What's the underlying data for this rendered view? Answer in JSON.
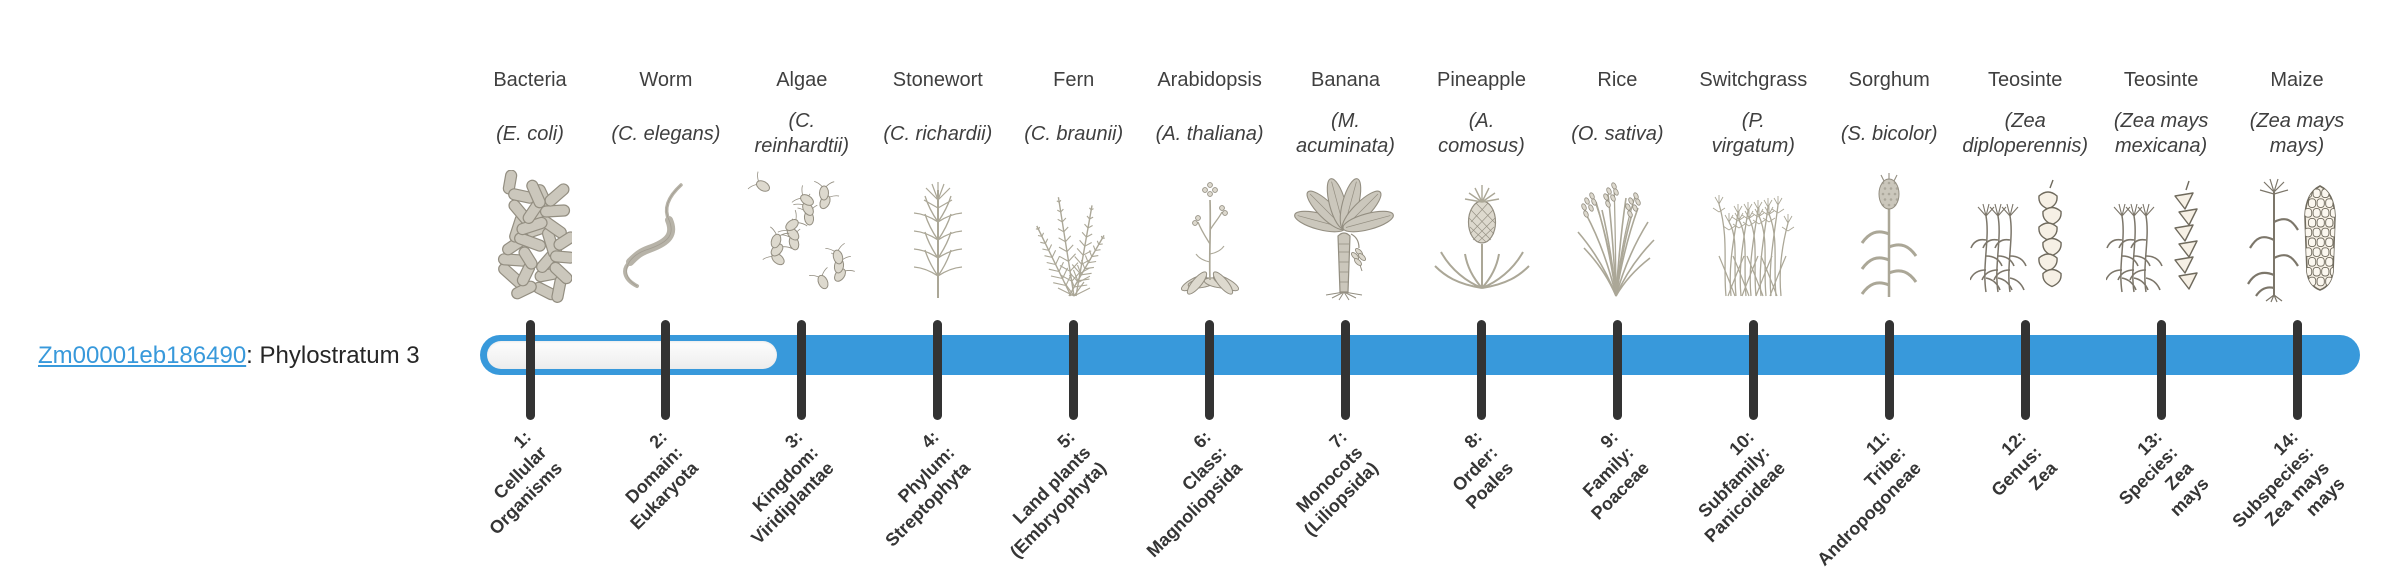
{
  "gene": {
    "id": "Zm00001eb186490",
    "separator": ": ",
    "phylostratum": "Phylostratum 3"
  },
  "colors": {
    "bar_blue": "#3899db",
    "tick_dark": "#333333",
    "link_blue": "#3899db",
    "text_dark": "#3f3f3f"
  },
  "timeline": {
    "total_strata": 14,
    "gene_stratum": 3,
    "unfilled_strata": [
      1,
      2
    ]
  },
  "strata": [
    {
      "index": 1,
      "organism": "Bacteria",
      "species": "(E. coli)",
      "icon": "bacteria-icon",
      "label": "1:\nCellular\nOrganisms"
    },
    {
      "index": 2,
      "organism": "Worm",
      "species": "(C. elegans)",
      "icon": "worm-icon",
      "label": "2:\nDomain:\nEukaryota"
    },
    {
      "index": 3,
      "organism": "Algae",
      "species": "(C.\nreinhardtii)",
      "icon": "algae-icon",
      "label": "3:\nKingdom:\nViridiplantae"
    },
    {
      "index": 4,
      "organism": "Stonewort",
      "species": "(C. richardii)",
      "icon": "stonewort-icon",
      "label": "4:\nPhylum:\nStreptophyta"
    },
    {
      "index": 5,
      "organism": "Fern",
      "species": "(C. braunii)",
      "icon": "fern-icon",
      "label": "5:\nLand plants\n(Embryophyta)"
    },
    {
      "index": 6,
      "organism": "Arabidopsis",
      "species": "(A. thaliana)",
      "icon": "arabidopsis-icon",
      "label": "6:\nClass:\nMagnoliopsida"
    },
    {
      "index": 7,
      "organism": "Banana",
      "species": "(M.\nacuminata)",
      "icon": "banana-icon",
      "label": "7:\nMonocots\n(Liliopsida)"
    },
    {
      "index": 8,
      "organism": "Pineapple",
      "species": "(A.\ncomosus)",
      "icon": "pineapple-icon",
      "label": "8:\nOrder:\nPoales"
    },
    {
      "index": 9,
      "organism": "Rice",
      "species": "(O. sativa)",
      "icon": "rice-icon",
      "label": "9:\nFamily:\nPoaceae"
    },
    {
      "index": 10,
      "organism": "Switchgrass",
      "species": "(P.\nvirgatum)",
      "icon": "switchgrass-icon",
      "label": "10:\nSubfamily:\nPanicoideae"
    },
    {
      "index": 11,
      "organism": "Sorghum",
      "species": "(S. bicolor)",
      "icon": "sorghum-icon",
      "label": "11:\nTribe:\nAndropogoneae"
    },
    {
      "index": 12,
      "organism": "Teosinte",
      "species": "(Zea\ndiploperennis)",
      "icon": "teosinte-diploperennis-icon",
      "label": "12:\nGenus:\nZea"
    },
    {
      "index": 13,
      "organism": "Teosinte",
      "species": "(Zea mays\nmexicana)",
      "icon": "teosinte-mexicana-icon",
      "label": "13:\nSpecies:\nZea\nmays"
    },
    {
      "index": 14,
      "organism": "Maize",
      "species": "(Zea mays\nmays)",
      "icon": "maize-icon",
      "label": "14:\nSubspecies:\nZea mays\nmays"
    }
  ]
}
